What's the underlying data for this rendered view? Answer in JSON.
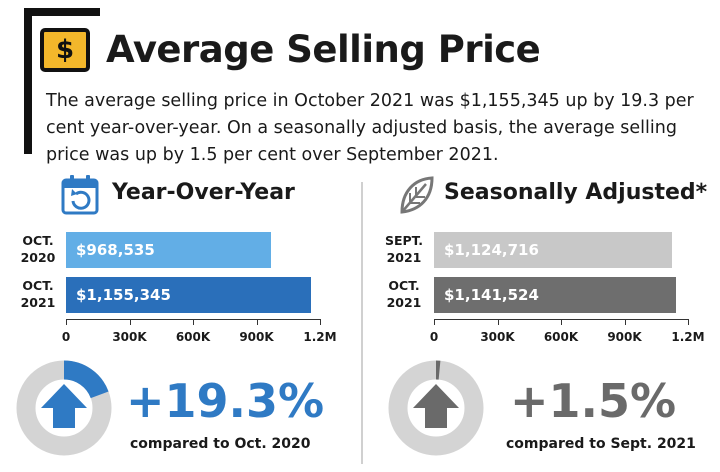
{
  "header": {
    "title": "Average Selling Price",
    "icon": "dollar-sign-icon",
    "sign_text": "$",
    "description": "The average selling price in October 2021 was $1,155,345 up by 19.3 per cent year-over-year. On a seasonally adjusted basis, the average selling price was up by 1.5 per cent over September 2021."
  },
  "yoy": {
    "title": "Year-Over-Year",
    "icon": "calendar-refresh-icon",
    "change": "+19.3%",
    "compared": "compared to Oct. 2020",
    "change_fraction": 0.193,
    "color": "#2f7ac4"
  },
  "sa": {
    "title": "Seasonally Adjusted*",
    "icon": "leaf-icon",
    "change": "+1.5%",
    "compared": "compared to Sept. 2021",
    "change_fraction": 0.015,
    "color": "#6a6a6a"
  },
  "chart_data": [
    {
      "type": "bar",
      "orientation": "horizontal",
      "title": "Year-Over-Year",
      "categories": [
        [
          "OCT.",
          "2020"
        ],
        [
          "OCT.",
          "2021"
        ]
      ],
      "values": [
        968535,
        1155345
      ],
      "value_labels": [
        "$968,535",
        "$1,155,345"
      ],
      "colors": [
        "#62aee6",
        "#2a6fba"
      ],
      "xlim": [
        0,
        1200000
      ],
      "x_ticks": [
        0,
        300000,
        600000,
        900000,
        1200000
      ],
      "x_tick_labels": [
        "0",
        "300K",
        "600K",
        "900K",
        "1.2M"
      ]
    },
    {
      "type": "bar",
      "orientation": "horizontal",
      "title": "Seasonally Adjusted*",
      "categories": [
        [
          "SEPT.",
          "2021"
        ],
        [
          "OCT.",
          "2021"
        ]
      ],
      "values": [
        1124716,
        1141524
      ],
      "value_labels": [
        "$1,124,716",
        "$1,141,524"
      ],
      "colors": [
        "#c8c8c8",
        "#6e6e6e"
      ],
      "xlim": [
        0,
        1200000
      ],
      "x_ticks": [
        0,
        300000,
        600000,
        900000,
        1200000
      ],
      "x_tick_labels": [
        "0",
        "300K",
        "600K",
        "900K",
        "1.2M"
      ]
    }
  ]
}
